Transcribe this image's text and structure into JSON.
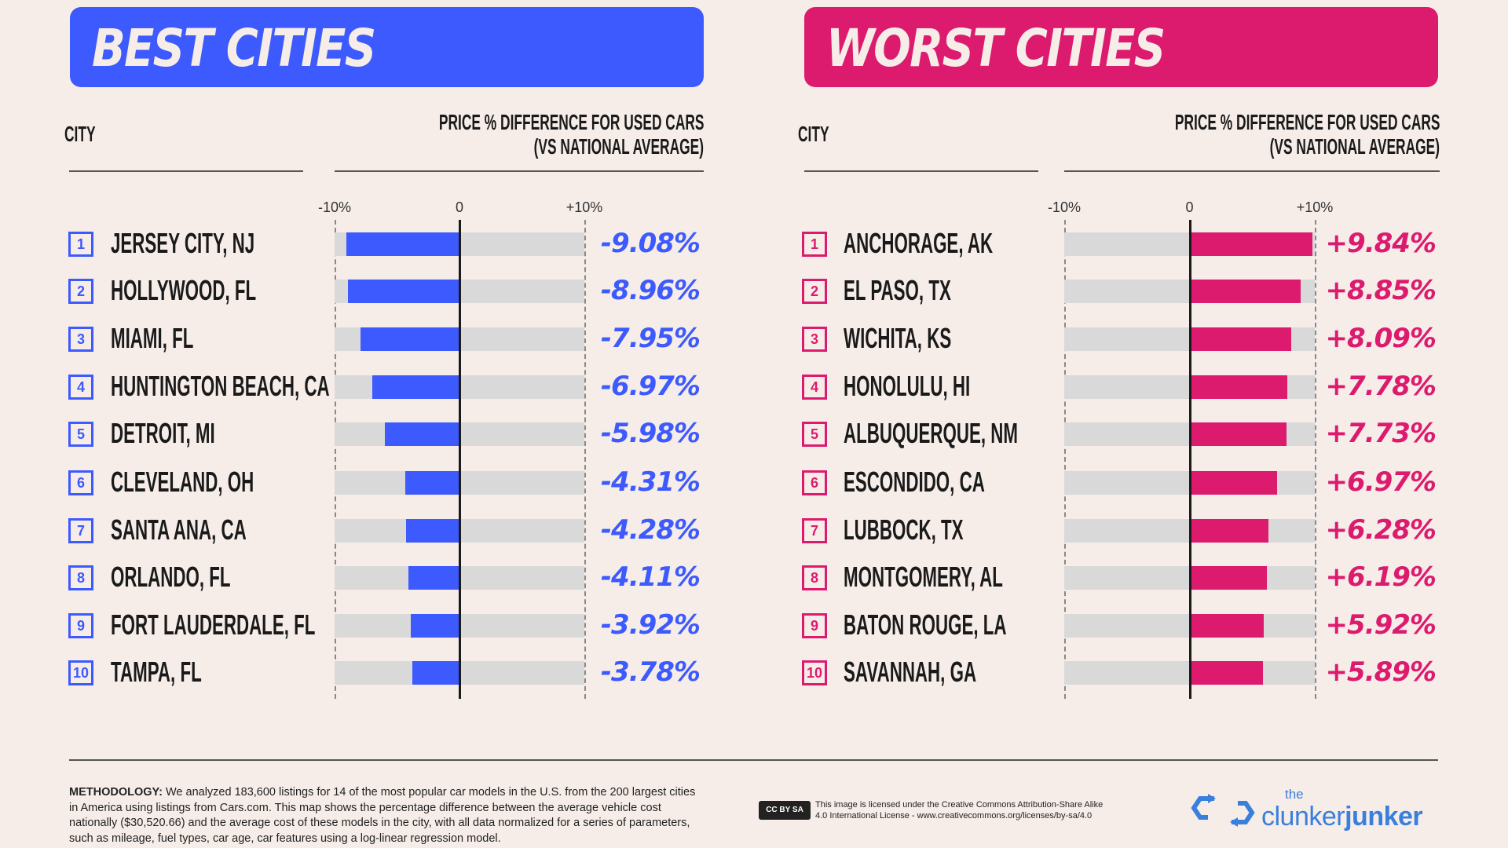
{
  "colors": {
    "best": "#3d5afe",
    "worst": "#dd1b6e",
    "track": "#d9d9d9",
    "background": "#f6ede9"
  },
  "headers": {
    "city": "CITY",
    "price_line1": "PRICE % DIFFERENCE FOR USED CARS",
    "price_line2": "(VS NATIONAL AVERAGE)"
  },
  "chart_data": [
    {
      "type": "bar",
      "orientation": "horizontal",
      "title": "BEST CITIES",
      "xlim": [
        -10,
        10
      ],
      "ticks": [
        "-10%",
        "0",
        "+10%"
      ],
      "categories": [
        "JERSEY CITY, NJ",
        "HOLLYWOOD, FL",
        "MIAMI, FL",
        "HUNTINGTON BEACH, CA",
        "DETROIT, MI",
        "CLEVELAND, OH",
        "SANTA ANA, CA",
        "ORLANDO, FL",
        "FORT LAUDERDALE, FL",
        "TAMPA, FL"
      ],
      "values": [
        -9.08,
        -8.96,
        -7.95,
        -6.97,
        -5.98,
        -4.31,
        -4.28,
        -4.11,
        -3.92,
        -3.78
      ],
      "labels": [
        "-9.08%",
        "-8.96%",
        "-7.95%",
        "-6.97%",
        "-5.98%",
        "-4.31%",
        "-4.28%",
        "-4.11%",
        "-3.92%",
        "-3.78%"
      ]
    },
    {
      "type": "bar",
      "orientation": "horizontal",
      "title": "WORST CITIES",
      "xlim": [
        -10,
        10
      ],
      "ticks": [
        "-10%",
        "0",
        "+10%"
      ],
      "categories": [
        "ANCHORAGE, AK",
        "EL PASO, TX",
        "WICHITA, KS",
        "HONOLULU, HI",
        "ALBUQUERQUE, NM",
        "ESCONDIDO, CA",
        "LUBBOCK, TX",
        "MONTGOMERY, AL",
        "BATON ROUGE, LA",
        "SAVANNAH, GA"
      ],
      "values": [
        9.84,
        8.85,
        8.09,
        7.78,
        7.73,
        6.97,
        6.28,
        6.19,
        5.92,
        5.89
      ],
      "labels": [
        "+9.84%",
        "+8.85%",
        "+8.09%",
        "+7.78%",
        "+7.73%",
        "+6.97%",
        "+6.28%",
        "+6.19%",
        "+5.92%",
        "+5.89%"
      ]
    }
  ],
  "footer": {
    "methodology_label": "METHODOLOGY:",
    "methodology_text": " We analyzed 183,600 listings for 14 of the most popular car models in the U.S. from the 200 largest cities in America using listings from Cars.com. This map shows the percentage difference between the average vehicle cost nationally ($30,520.66) and the average cost of these models in the city, with all data normalized for a series of parameters, such as mileage, fuel types, car age, car features using a log-linear regression model.",
    "cc_badge": "CC BY SA",
    "license_line1": "This image is licensed under the Creative Commons  Attribution-Share Alike",
    "license_line2": "4.0 International License - www.creativecommons.org/licenses/by-sa/4.0",
    "logo_the": "the",
    "logo_clunker": "clunker",
    "logo_junker": "junker"
  }
}
